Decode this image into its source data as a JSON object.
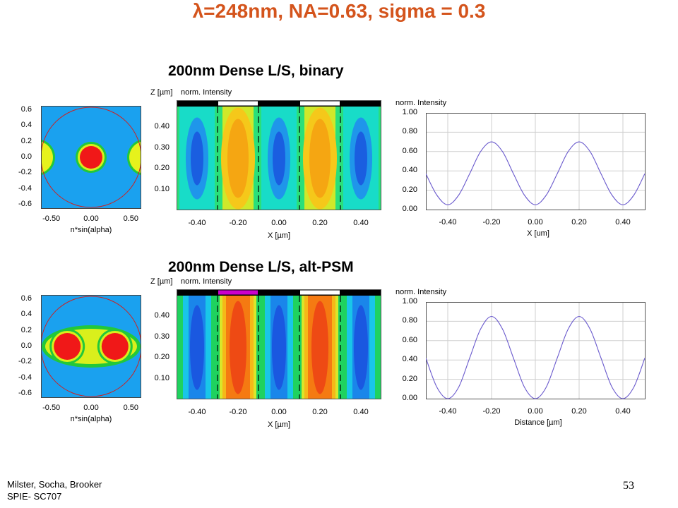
{
  "title": "λ=248nm, NA=0.63, sigma = 0.3",
  "footer": {
    "authors": "Milster, Socha, Brooker",
    "course": "SPIE- SC707",
    "page_number": "53"
  },
  "colors": {
    "title": "#d4541c",
    "curve": "#6a5acd",
    "pupil_circle": "#cc2222",
    "phase_shifter": "#cc00cc"
  },
  "panels": [
    {
      "name": "binary",
      "section_title": "200nm Dense L/S, binary",
      "pupil": {
        "xlabel": "n*sin(alpha)",
        "x_ticks": [
          "-0.50",
          "0.00",
          "0.50"
        ],
        "y_ticks": [
          "0.6",
          "0.4",
          "0.2",
          "0.0",
          "-0.2",
          "-0.4",
          "-0.6"
        ]
      },
      "aerial": {
        "ylabel": "Z [µm]",
        "header_label": "norm. Intensity",
        "xlabel": "X [µm]",
        "x_ticks": [
          "-0.40",
          "-0.20",
          "0.00",
          "0.20",
          "0.40"
        ],
        "y_ticks": [
          "0.40",
          "0.30",
          "0.20",
          "0.10"
        ]
      },
      "profile": {
        "ylabel": "norm. Intensity",
        "xlabel": "X [um]",
        "x_ticks": [
          "-0.40",
          "-0.20",
          "0.00",
          "0.20",
          "0.40"
        ],
        "y_ticks": [
          "1.00",
          "0.80",
          "0.60",
          "0.40",
          "0.20",
          "0.00"
        ]
      }
    },
    {
      "name": "altpsm",
      "section_title": "200nm Dense L/S, alt-PSM",
      "pupil": {
        "xlabel": "n*sin(alpha)",
        "x_ticks": [
          "-0.50",
          "0.00",
          "0.50"
        ],
        "y_ticks": [
          "0.6",
          "0.4",
          "0.2",
          "0.0",
          "-0.2",
          "-0.4",
          "-0.6"
        ]
      },
      "aerial": {
        "ylabel": "Z [µm]",
        "header_label": "norm. Intensity",
        "xlabel": "X [µm]",
        "x_ticks": [
          "-0.40",
          "-0.20",
          "0.00",
          "0.20",
          "0.40"
        ],
        "y_ticks": [
          "0.40",
          "0.30",
          "0.20",
          "0.10"
        ]
      },
      "profile": {
        "ylabel": "norm. Intensity",
        "xlabel": "Distance [µm]",
        "x_ticks": [
          "-0.40",
          "-0.20",
          "0.00",
          "0.20",
          "0.40"
        ],
        "y_ticks": [
          "1.00",
          "0.80",
          "0.60",
          "0.40",
          "0.20",
          "0.00"
        ]
      }
    }
  ],
  "chart_data": [
    {
      "type": "line",
      "panel": "binary",
      "xlabel": "X [um]",
      "ylabel": "norm. Intensity",
      "xlim": [
        -0.5,
        0.5
      ],
      "ylim": [
        0,
        1
      ],
      "x": [
        -0.5,
        -0.45,
        -0.4,
        -0.35,
        -0.3,
        -0.25,
        -0.2,
        -0.15,
        -0.1,
        -0.05,
        0.0,
        0.05,
        0.1,
        0.15,
        0.2,
        0.25,
        0.3,
        0.35,
        0.4,
        0.45,
        0.5
      ],
      "y": [
        0.37,
        0.15,
        0.05,
        0.15,
        0.37,
        0.6,
        0.7,
        0.6,
        0.37,
        0.15,
        0.05,
        0.15,
        0.37,
        0.6,
        0.7,
        0.6,
        0.37,
        0.15,
        0.05,
        0.15,
        0.37
      ]
    },
    {
      "type": "line",
      "panel": "altpsm",
      "xlabel": "Distance [µm]",
      "ylabel": "norm. Intensity",
      "xlim": [
        -0.5,
        0.5
      ],
      "ylim": [
        0,
        1
      ],
      "x": [
        -0.5,
        -0.45,
        -0.4,
        -0.35,
        -0.3,
        -0.25,
        -0.2,
        -0.15,
        -0.1,
        -0.05,
        0.0,
        0.05,
        0.1,
        0.15,
        0.2,
        0.25,
        0.3,
        0.35,
        0.4,
        0.45,
        0.5
      ],
      "y": [
        0.42,
        0.12,
        0.0,
        0.12,
        0.42,
        0.72,
        0.85,
        0.72,
        0.42,
        0.12,
        0.0,
        0.12,
        0.42,
        0.72,
        0.85,
        0.72,
        0.42,
        0.12,
        0.0,
        0.12,
        0.42
      ]
    }
  ]
}
